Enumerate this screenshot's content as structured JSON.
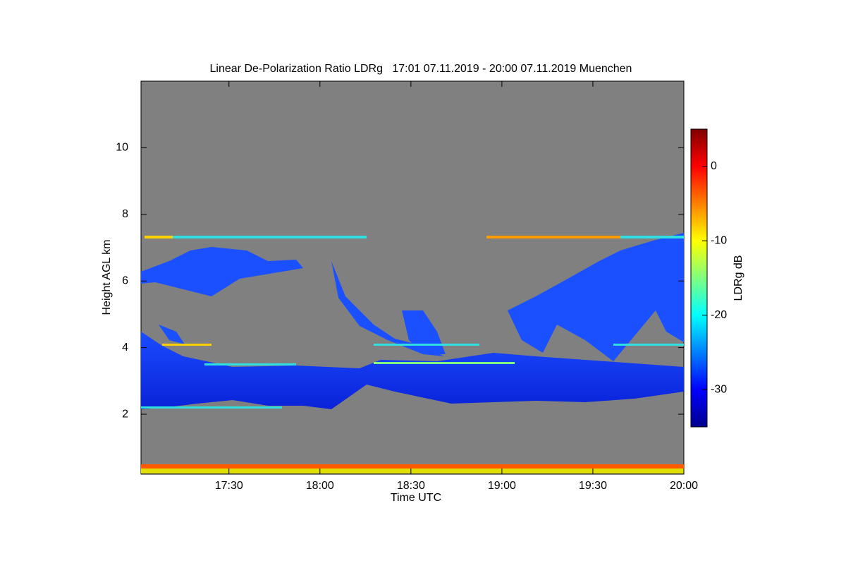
{
  "chart_data": {
    "type": "heatmap",
    "title": "Linear De-Polarization Ratio LDRg   17:01 07.11.2019 - 20:00 07.11.2019 Muenchen",
    "xlabel": "Time UTC",
    "ylabel": "Height AGL km",
    "colorbar_label": "LDRg dB",
    "colormap": "jet",
    "background": "#808080",
    "xlim": [
      1021,
      1200
    ],
    "xticks": [
      {
        "value": 1050,
        "label": "17:30"
      },
      {
        "value": 1080,
        "label": "18:00"
      },
      {
        "value": 1110,
        "label": "18:30"
      },
      {
        "value": 1140,
        "label": "19:00"
      },
      {
        "value": 1170,
        "label": "19:30"
      },
      {
        "value": 1200,
        "label": "20:00"
      }
    ],
    "ylim": [
      0.2,
      12
    ],
    "yticks": [
      2,
      4,
      6,
      8,
      10
    ],
    "clim": [
      -35,
      5
    ],
    "cticks": [
      0,
      -10,
      -20,
      -30
    ]
  }
}
